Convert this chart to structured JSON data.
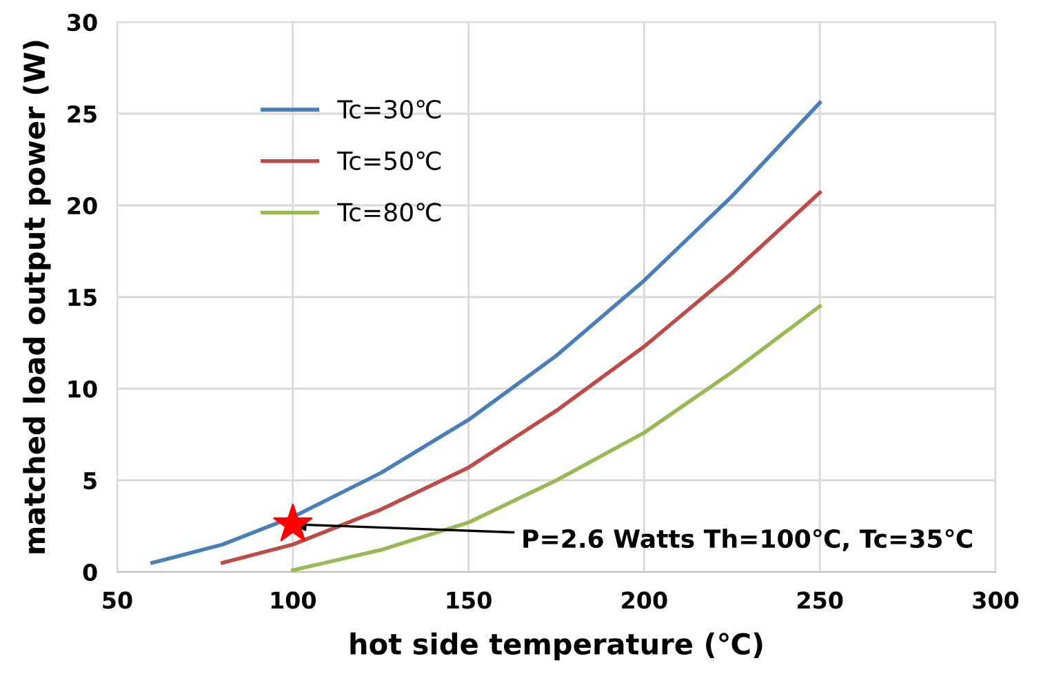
{
  "chart_data": {
    "type": "line",
    "xlabel": "hot side temperature (℃)",
    "ylabel": "matched load output power (W)",
    "xlim": [
      50,
      300
    ],
    "xticks": [
      50,
      100,
      150,
      200,
      250,
      300
    ],
    "ylim": [
      0,
      30
    ],
    "yticks": [
      0,
      5,
      10,
      15,
      20,
      25,
      30
    ],
    "grid": true,
    "legend": "top left",
    "marker": "none",
    "line_style": "solid",
    "series": [
      {
        "name": "Tc=30℃",
        "color": "#4a7ebb",
        "x": [
          60,
          80,
          100,
          125,
          150,
          175,
          200,
          225,
          250
        ],
        "values": [
          0.5,
          1.5,
          3.0,
          5.4,
          8.3,
          11.8,
          15.9,
          20.5,
          25.6
        ]
      },
      {
        "name": "Tc=50℃",
        "color": "#be4b48",
        "x": [
          80,
          100,
          125,
          150,
          175,
          200,
          225,
          250
        ],
        "values": [
          0.5,
          1.5,
          3.4,
          5.7,
          8.8,
          12.3,
          16.3,
          20.7
        ]
      },
      {
        "name": "Tc=80℃",
        "color": "#98b954",
        "x": [
          100,
          125,
          150,
          175,
          200,
          225,
          250
        ],
        "values": [
          0.1,
          1.2,
          2.7,
          5.0,
          7.6,
          10.9,
          14.5
        ]
      },
      {
        "type": "scatter",
        "marker": "star",
        "color": "#ff0000",
        "x": [
          100
        ],
        "values": [
          2.6
        ]
      }
    ],
    "annotations": [
      {
        "text": "P=2.6 Watts Th=100℃, Tc=35℃",
        "x": 100,
        "y": 2.6
      }
    ]
  }
}
